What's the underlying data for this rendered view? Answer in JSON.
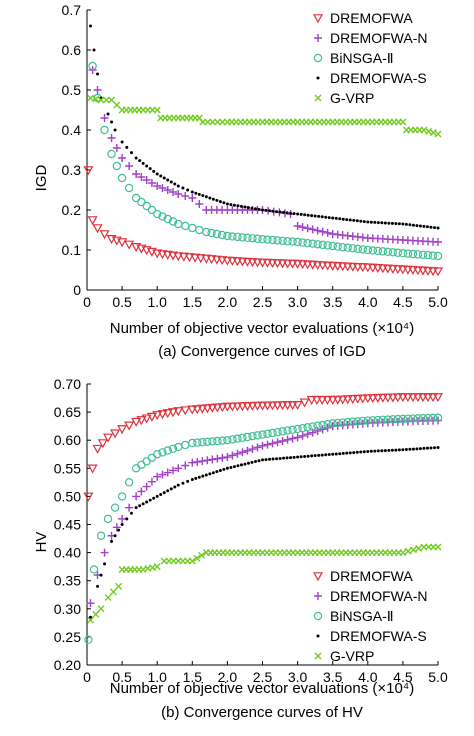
{
  "legend_labels": [
    "DREMOFWA",
    "DREMOFWA-N",
    "BiNSGA-Ⅱ",
    "DREMOFWA-S",
    "G-VRP"
  ],
  "series_colors": {
    "DREMOFWA": "#e0303a",
    "DREMOFWA-N": "#a040c8",
    "BiNSGA-Ⅱ": "#40c090",
    "DREMOFWA-S": "#000000",
    "G-VRP": "#70cc20"
  },
  "series_markers": {
    "DREMOFWA": "triangle-down",
    "DREMOFWA-N": "plus",
    "BiNSGA-Ⅱ": "circle",
    "DREMOFWA-S": "dot",
    "G-VRP": "x"
  },
  "chart_data": [
    {
      "type": "scatter",
      "caption": "(a) Convergence curves of IGD",
      "xlabel": "Number of objective vector evaluations (×10⁴)",
      "ylabel": "IGD",
      "xlim": [
        0,
        5.0
      ],
      "ylim": [
        0,
        0.7
      ],
      "xticks": [
        "0",
        "0.5",
        "1.0",
        "1.5",
        "2.0",
        "2.5",
        "3.0",
        "3.5",
        "4.0",
        "4.5",
        "5.0"
      ],
      "yticks": [
        "0",
        "0.1",
        "0.2",
        "0.3",
        "0.4",
        "0.5",
        "0.6",
        "0.7"
      ],
      "legend_position": "top-right",
      "series": [
        {
          "name": "DREMOFWA",
          "x": [
            0.02,
            0.08,
            0.15,
            0.25,
            0.35,
            0.5,
            0.7,
            1.0,
            1.3,
            1.7,
            2.0,
            2.5,
            3.0,
            3.5,
            4.0,
            4.5,
            5.0
          ],
          "y": [
            0.3,
            0.175,
            0.155,
            0.14,
            0.128,
            0.12,
            0.108,
            0.092,
            0.085,
            0.079,
            0.074,
            0.069,
            0.066,
            0.061,
            0.057,
            0.052,
            0.047
          ]
        },
        {
          "name": "DREMOFWA-N",
          "x": [
            0.08,
            0.15,
            0.25,
            0.35,
            0.5,
            0.7,
            1.0,
            1.3,
            1.5,
            1.7,
            2.0,
            2.5,
            2.9,
            3.0,
            3.5,
            4.0,
            4.5,
            5.0
          ],
          "y": [
            0.55,
            0.5,
            0.43,
            0.38,
            0.33,
            0.29,
            0.26,
            0.24,
            0.23,
            0.2,
            0.2,
            0.2,
            0.19,
            0.16,
            0.14,
            0.13,
            0.125,
            0.12
          ]
        },
        {
          "name": "BiNSGA-Ⅱ",
          "x": [
            0.08,
            0.15,
            0.25,
            0.35,
            0.5,
            0.7,
            1.0,
            1.3,
            1.5,
            1.7,
            2.0,
            2.5,
            3.0,
            3.5,
            4.0,
            4.5,
            5.0
          ],
          "y": [
            0.56,
            0.48,
            0.4,
            0.34,
            0.28,
            0.23,
            0.19,
            0.165,
            0.155,
            0.145,
            0.135,
            0.127,
            0.12,
            0.11,
            0.1,
            0.092,
            0.085
          ]
        },
        {
          "name": "DREMOFWA-S",
          "x": [
            0.05,
            0.1,
            0.2,
            0.3,
            0.4,
            0.5,
            0.7,
            1.0,
            1.3,
            1.5,
            2.0,
            2.5,
            3.0,
            3.5,
            4.0,
            4.5,
            5.0
          ],
          "y": [
            0.66,
            0.6,
            0.48,
            0.44,
            0.4,
            0.37,
            0.33,
            0.29,
            0.26,
            0.245,
            0.215,
            0.2,
            0.19,
            0.18,
            0.17,
            0.165,
            0.155
          ]
        },
        {
          "name": "G-VRP",
          "x": [
            0.05,
            0.2,
            0.35,
            0.5,
            0.8,
            1.0,
            1.05,
            1.3,
            1.6,
            1.65,
            2.0,
            2.5,
            3.0,
            3.5,
            4.0,
            4.5,
            4.55,
            4.8,
            5.0
          ],
          "y": [
            0.48,
            0.475,
            0.475,
            0.45,
            0.45,
            0.45,
            0.43,
            0.43,
            0.43,
            0.42,
            0.42,
            0.42,
            0.42,
            0.42,
            0.42,
            0.42,
            0.4,
            0.4,
            0.39
          ]
        }
      ]
    },
    {
      "type": "scatter",
      "caption": "(b) Convergence curves of HV",
      "xlabel": "Number of objective vector evaluations (×10⁴)",
      "ylabel": "HV",
      "xlim": [
        0,
        5.0
      ],
      "ylim": [
        0.2,
        0.7
      ],
      "xticks": [
        "0",
        "0.5",
        "1.0",
        "1.5",
        "2.0",
        "2.5",
        "3.0",
        "3.5",
        "4.0",
        "4.5",
        "5.0"
      ],
      "yticks": [
        "0.20",
        "0.25",
        "0.30",
        "0.35",
        "0.40",
        "0.45",
        "0.50",
        "0.55",
        "0.60",
        "0.65",
        "0.70"
      ],
      "legend_position": "bottom-right",
      "series": [
        {
          "name": "DREMOFWA",
          "x": [
            0.02,
            0.08,
            0.15,
            0.3,
            0.5,
            0.7,
            1.0,
            1.3,
            1.5,
            2.0,
            2.5,
            3.0,
            3.2,
            3.5,
            4.0,
            4.5,
            5.0
          ],
          "y": [
            0.5,
            0.55,
            0.585,
            0.605,
            0.62,
            0.633,
            0.645,
            0.652,
            0.655,
            0.66,
            0.662,
            0.663,
            0.672,
            0.672,
            0.675,
            0.677,
            0.677
          ]
        },
        {
          "name": "DREMOFWA-N",
          "x": [
            0.05,
            0.15,
            0.25,
            0.35,
            0.5,
            0.7,
            1.0,
            1.3,
            1.5,
            2.0,
            2.5,
            3.0,
            3.5,
            4.0,
            4.5,
            5.0
          ],
          "y": [
            0.31,
            0.36,
            0.4,
            0.43,
            0.46,
            0.5,
            0.535,
            0.55,
            0.56,
            0.57,
            0.59,
            0.605,
            0.625,
            0.63,
            0.633,
            0.635
          ]
        },
        {
          "name": "BiNSGA-Ⅱ",
          "x": [
            0.02,
            0.1,
            0.2,
            0.3,
            0.4,
            0.5,
            0.7,
            1.0,
            1.3,
            1.5,
            2.0,
            2.5,
            3.0,
            3.5,
            4.0,
            4.5,
            5.0
          ],
          "y": [
            0.245,
            0.37,
            0.43,
            0.46,
            0.48,
            0.5,
            0.55,
            0.575,
            0.588,
            0.595,
            0.6,
            0.61,
            0.62,
            0.63,
            0.635,
            0.638,
            0.64
          ]
        },
        {
          "name": "DREMOFWA-S",
          "x": [
            0.05,
            0.15,
            0.25,
            0.35,
            0.5,
            0.7,
            1.0,
            1.3,
            1.5,
            2.0,
            2.5,
            3.0,
            3.5,
            4.0,
            4.5,
            5.0
          ],
          "y": [
            0.285,
            0.34,
            0.38,
            0.42,
            0.45,
            0.48,
            0.5,
            0.52,
            0.53,
            0.55,
            0.565,
            0.57,
            0.575,
            0.58,
            0.583,
            0.587
          ]
        },
        {
          "name": "G-VRP",
          "x": [
            0.05,
            0.2,
            0.3,
            0.45,
            0.5,
            0.8,
            1.0,
            1.1,
            1.5,
            1.7,
            2.0,
            2.5,
            3.0,
            3.5,
            4.0,
            4.5,
            4.8,
            5.0
          ],
          "y": [
            0.28,
            0.3,
            0.32,
            0.34,
            0.37,
            0.37,
            0.375,
            0.385,
            0.385,
            0.4,
            0.4,
            0.4,
            0.4,
            0.4,
            0.4,
            0.4,
            0.41,
            0.41
          ]
        }
      ]
    }
  ]
}
